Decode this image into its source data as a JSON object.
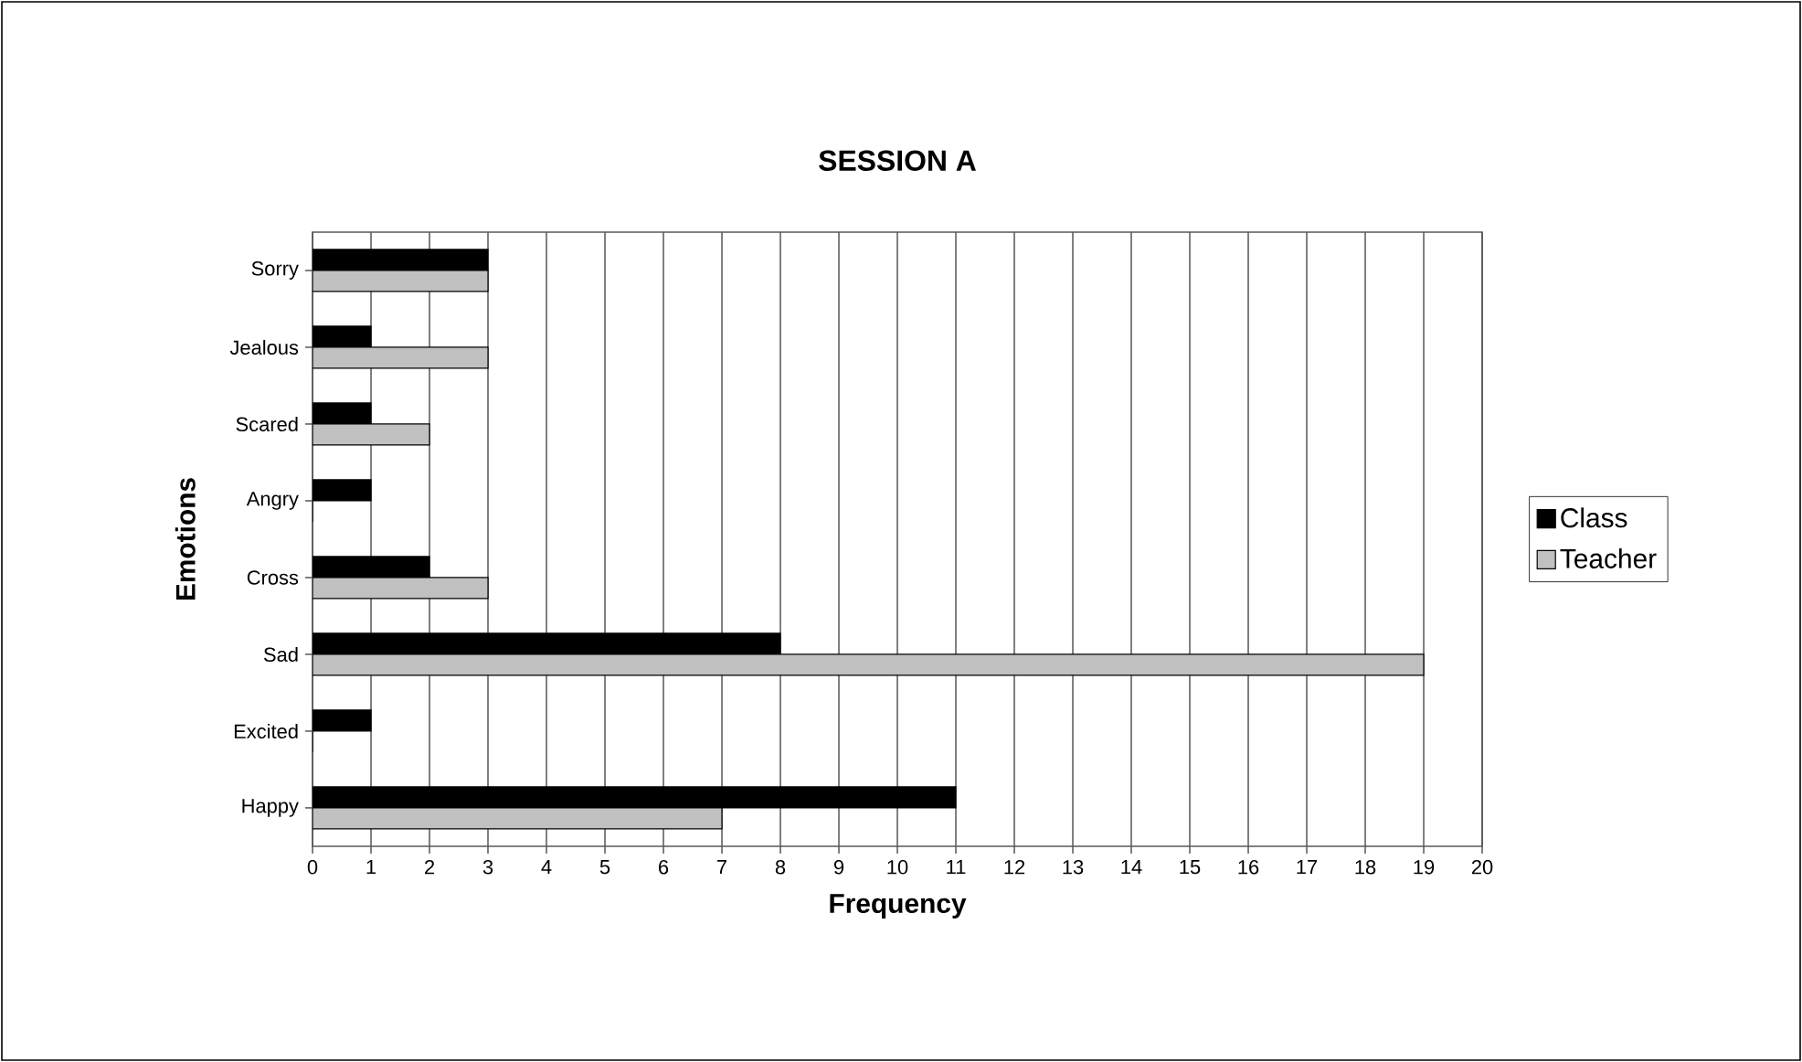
{
  "chart_data": {
    "type": "bar",
    "orientation": "horizontal",
    "title": "SESSION A",
    "xlabel": "Frequency",
    "ylabel": "Emotions",
    "categories": [
      "Sorry",
      "Jealous",
      "Scared",
      "Angry",
      "Cross",
      "Sad",
      "Excited",
      "Happy"
    ],
    "series": [
      {
        "name": "Class",
        "color": "#000000",
        "values": [
          3,
          1,
          1,
          1,
          2,
          8,
          1,
          11
        ]
      },
      {
        "name": "Teacher",
        "color": "#c0c0c0",
        "values": [
          3,
          3,
          2,
          0,
          3,
          19,
          0,
          7
        ]
      }
    ],
    "xlim": [
      0,
      20
    ],
    "xticks": [
      0,
      1,
      2,
      3,
      4,
      5,
      6,
      7,
      8,
      9,
      10,
      11,
      12,
      13,
      14,
      15,
      16,
      17,
      18,
      19,
      20
    ],
    "grid": "x",
    "legend": "right"
  }
}
